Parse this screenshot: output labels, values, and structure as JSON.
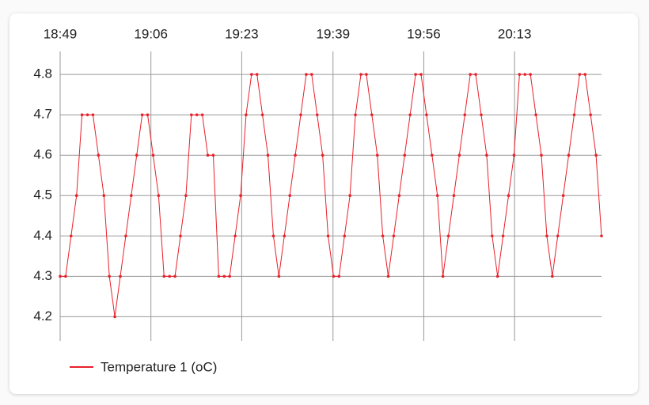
{
  "chart_data": {
    "type": "line",
    "x": [
      0,
      1,
      2,
      3,
      4,
      5,
      6,
      7,
      8,
      9,
      10,
      11,
      12,
      13,
      14,
      15,
      16,
      17,
      18,
      19,
      20,
      21,
      22,
      23,
      24,
      25,
      26,
      27,
      28,
      29,
      30,
      31,
      32,
      33,
      34,
      35,
      36,
      37,
      38,
      39,
      40,
      41,
      42,
      43,
      44,
      45,
      46,
      47,
      48,
      49,
      50,
      51,
      52,
      53,
      54,
      55,
      56,
      57,
      58,
      59,
      60,
      61,
      62,
      63,
      64,
      65,
      66,
      67,
      68,
      69,
      70,
      71,
      72,
      73,
      74,
      75,
      76,
      77,
      78,
      79,
      80,
      81,
      82,
      83,
      84,
      85,
      86,
      87,
      88,
      89,
      90,
      91,
      92,
      93,
      94,
      95,
      96,
      97,
      98,
      99
    ],
    "series": [
      {
        "name": "Temperature 1 (oC)",
        "color": "#e8202a",
        "values": [
          4.3,
          4.3,
          4.4,
          4.5,
          4.7,
          4.7,
          4.7,
          4.6,
          4.5,
          4.3,
          4.2,
          4.3,
          4.4,
          4.5,
          4.6,
          4.7,
          4.7,
          4.6,
          4.5,
          4.3,
          4.3,
          4.3,
          4.4,
          4.5,
          4.7,
          4.7,
          4.7,
          4.6,
          4.6,
          4.3,
          4.3,
          4.3,
          4.4,
          4.5,
          4.7,
          4.8,
          4.8,
          4.7,
          4.6,
          4.4,
          4.3,
          4.4,
          4.5,
          4.6,
          4.7,
          4.8,
          4.8,
          4.7,
          4.6,
          4.4,
          4.3,
          4.3,
          4.4,
          4.5,
          4.7,
          4.8,
          4.8,
          4.7,
          4.6,
          4.4,
          4.3,
          4.4,
          4.5,
          4.6,
          4.7,
          4.8,
          4.8,
          4.7,
          4.6,
          4.5,
          4.3,
          4.4,
          4.5,
          4.6,
          4.7,
          4.8,
          4.8,
          4.7,
          4.6,
          4.4,
          4.3,
          4.4,
          4.5,
          4.6,
          4.8,
          4.8,
          4.8,
          4.7,
          4.6,
          4.4,
          4.3,
          4.4,
          4.5,
          4.6,
          4.7,
          4.8,
          4.8,
          4.7,
          4.6,
          4.4
        ]
      }
    ],
    "xlim": [
      0,
      99
    ],
    "xticks": [
      {
        "value": 0,
        "label": "18:49"
      },
      {
        "value": 16.6,
        "label": "19:06"
      },
      {
        "value": 33.2,
        "label": "19:23"
      },
      {
        "value": 49.9,
        "label": "19:39"
      },
      {
        "value": 66.5,
        "label": "19:56"
      },
      {
        "value": 83.1,
        "label": "20:13"
      }
    ],
    "ylim": [
      4.14,
      4.857
    ],
    "yticks": [
      4.2,
      4.3,
      4.4,
      4.5,
      4.6,
      4.7,
      4.8
    ],
    "grid": true
  }
}
